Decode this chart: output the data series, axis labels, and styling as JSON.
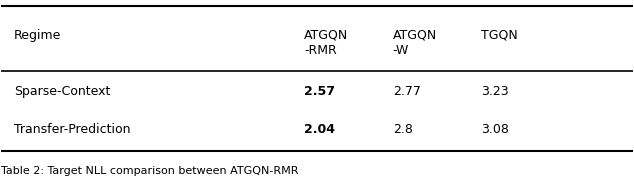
{
  "col_headers": [
    "Regime",
    "ATGQN\n-RMR",
    "ATGQN\n-W",
    "TGQN"
  ],
  "rows": [
    [
      "Sparse-Context",
      "2.57",
      "2.77",
      "3.23"
    ],
    [
      "Transfer-Prediction",
      "2.04",
      "2.8",
      "3.08"
    ]
  ],
  "bold_col": 1,
  "caption": "Table 2: Target NLL comparison between ATGQN-RMR",
  "bg_color": "#ffffff",
  "text_color": "#000000",
  "figsize": [
    6.34,
    1.76
  ],
  "dpi": 100
}
